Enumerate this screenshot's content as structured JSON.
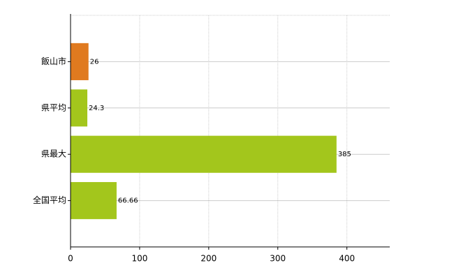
{
  "chart_data": {
    "type": "hbar",
    "categories": [
      "飯山市",
      "県平均",
      "県最大",
      "全国平均"
    ],
    "values": [
      26,
      24.3,
      385,
      66.66
    ],
    "colors": [
      "#e07a1f",
      "#a3c61c",
      "#a3c61c",
      "#a3c61c"
    ],
    "xlim": [
      0,
      460
    ],
    "xticks": [
      0,
      100,
      200,
      300,
      400
    ],
    "grid": true
  }
}
